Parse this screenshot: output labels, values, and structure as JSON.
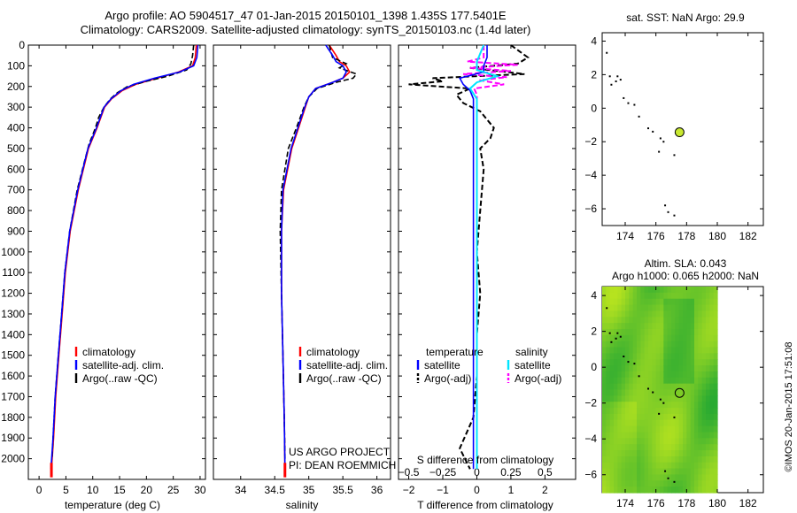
{
  "header": {
    "line1": "Argo profile: AO 5904517_47 01-Jan-2015 20150101_1398 1.435S 177.5401E",
    "line2": "Climatology: CARS2009. Satellite-adjusted climatology: synTS_20150103.nc (1.4d later)"
  },
  "credit": "©IMOS 20-Jan-2015 17:51:08",
  "colors": {
    "clim": "#ff0000",
    "sat": "#0000ff",
    "argo": "#000000",
    "sal_sat": "#00e5ff",
    "sal_argo": "#ff00ff",
    "marker": "#c8e830"
  },
  "chart_data": [
    {
      "id": "temperature",
      "type": "line",
      "xlabel": "temperature (deg C)",
      "ylabel": "",
      "xlim": [
        -2,
        31
      ],
      "ylim": [
        2100,
        0
      ],
      "xticks": [
        0,
        5,
        10,
        15,
        20,
        25,
        30
      ],
      "xticklabels": [
        "0",
        "5",
        "10",
        "15",
        "20",
        "25",
        "30"
      ],
      "yticks": [
        0,
        100,
        200,
        300,
        400,
        500,
        600,
        700,
        800,
        900,
        1000,
        1100,
        1200,
        1300,
        1400,
        1500,
        1600,
        1700,
        1800,
        1900,
        2000
      ],
      "yticklabels": [
        "0",
        "100",
        "200",
        "300",
        "400",
        "500",
        "600",
        "700",
        "800",
        "900",
        "1000",
        "1100",
        "1200",
        "1300",
        "1400",
        "1500",
        "1600",
        "1700",
        "1800",
        "1900",
        "2000"
      ],
      "legend": [
        "climatology",
        "satellite-adj. clim.",
        "Argo(..raw -QC)"
      ],
      "series": [
        {
          "name": "climatology",
          "depth": [
            0,
            60,
            100,
            130,
            160,
            190,
            220,
            260,
            300,
            400,
            500,
            700,
            900,
            1100,
            1300,
            1500,
            1700,
            1900,
            2050
          ],
          "values": [
            29.3,
            29.1,
            28.6,
            26,
            22,
            18,
            15.5,
            13.5,
            12.2,
            10.8,
            9.2,
            7.3,
            5.8,
            4.9,
            4.3,
            3.7,
            3.1,
            2.7,
            2.3
          ]
        },
        {
          "name": "satellite-adj. clim.",
          "depth": [
            0,
            60,
            100,
            130,
            160,
            190,
            220,
            260,
            300,
            400,
            500,
            700,
            900,
            1100,
            1300,
            1500,
            1700,
            1900,
            2050
          ],
          "values": [
            29.6,
            29.4,
            28.8,
            26.2,
            21.5,
            17.6,
            15.3,
            13.4,
            12.1,
            10.7,
            9.1,
            7.2,
            5.7,
            4.8,
            4.2,
            3.6,
            3.0,
            2.6,
            2.2
          ]
        },
        {
          "name": "Argo(..raw -QC)",
          "depth": [
            0,
            50,
            90,
            120,
            150,
            175,
            200,
            230,
            260,
            300,
            350,
            400,
            480,
            550,
            700,
            900,
            1100,
            1300,
            1500,
            1700,
            1900,
            2000
          ],
          "values": [
            28.8,
            28.6,
            28.3,
            27.5,
            24,
            20,
            16.5,
            14.6,
            13.3,
            12.1,
            11.1,
            10.5,
            9.3,
            8.6,
            7.1,
            5.7,
            4.8,
            4.2,
            3.6,
            3.0,
            2.6,
            2.4
          ]
        }
      ]
    },
    {
      "id": "salinity",
      "type": "line",
      "xlabel": "salinity",
      "xlim": [
        33.6,
        36.2
      ],
      "ylim": [
        2100,
        0
      ],
      "xticks": [
        34,
        34.5,
        35,
        35.5,
        36
      ],
      "xticklabels": [
        "34",
        "34.5",
        "35",
        "35.5",
        "36"
      ],
      "legend": [
        "climatology",
        "satellite-adj. clim.",
        "Argo(..raw -QC)"
      ],
      "annotation": [
        "US ARGO PROJECT",
        "PI: DEAN ROEMMICH"
      ],
      "series": [
        {
          "name": "climatology",
          "depth": [
            0,
            50,
            80,
            100,
            130,
            160,
            180,
            210,
            250,
            300,
            400,
            500,
            700,
            900,
            1200,
            1500,
            1800,
            2050
          ],
          "values": [
            35.3,
            35.4,
            35.45,
            35.55,
            35.6,
            35.5,
            35.35,
            35.1,
            35.0,
            34.95,
            34.85,
            34.75,
            34.63,
            34.6,
            34.6,
            34.62,
            34.64,
            34.65
          ]
        },
        {
          "name": "satellite-adj. clim.",
          "depth": [
            0,
            50,
            80,
            100,
            130,
            160,
            180,
            210,
            250,
            300,
            400,
            500,
            700,
            900,
            1200,
            1500,
            1800,
            2050
          ],
          "values": [
            35.25,
            35.35,
            35.4,
            35.5,
            35.55,
            35.5,
            35.35,
            35.1,
            35.0,
            34.94,
            34.84,
            34.74,
            34.62,
            34.6,
            34.6,
            34.62,
            34.64,
            34.65
          ]
        },
        {
          "name": "Argo(..raw -QC)",
          "depth": [
            0,
            60,
            90,
            110,
            140,
            160,
            180,
            210,
            250,
            300,
            400,
            500,
            700,
            900,
            1200,
            1500,
            1800,
            2000
          ],
          "values": [
            35.3,
            35.35,
            35.55,
            35.45,
            35.7,
            35.65,
            35.4,
            35.12,
            35.0,
            34.93,
            34.82,
            34.7,
            34.6,
            34.58,
            34.6,
            34.62,
            34.64,
            34.65
          ]
        }
      ]
    },
    {
      "id": "difference",
      "type": "line",
      "xlabel": "T difference from climatology",
      "toplabel": "S difference from climatology",
      "xlim": [
        -2.3,
        2.9
      ],
      "ylim": [
        2100,
        0
      ],
      "xticks": [
        -2,
        -1,
        0,
        1,
        2
      ],
      "xticklabels": [
        "−2",
        "−1",
        "0",
        "1",
        "2"
      ],
      "sticks": [
        -0.5,
        -0.25,
        0,
        0.25,
        0.5
      ],
      "sticklabels": [
        "−0.5",
        "−0.25",
        "0",
        "0.25",
        "0.5"
      ],
      "legend_temperature": {
        "title": "temperature",
        "items": [
          "satellite",
          "Argo(-adj)"
        ]
      },
      "legend_salinity": {
        "title": "salinity",
        "items": [
          "satellite",
          "Argo(-adj)"
        ]
      },
      "series": [
        {
          "name": "T satellite",
          "depth": [
            0,
            60,
            100,
            130,
            160,
            190,
            220,
            260,
            300,
            400,
            600,
            900,
            1200,
            1500,
            1800,
            2050
          ],
          "values": [
            0.3,
            0.3,
            0.2,
            0.2,
            -0.5,
            -0.4,
            -0.2,
            -0.1,
            -0.1,
            -0.1,
            -0.1,
            -0.1,
            -0.1,
            -0.1,
            -0.1,
            -0.1
          ]
        },
        {
          "name": "T Argo(-adj)",
          "depth": [
            0,
            60,
            90,
            110,
            140,
            160,
            175,
            190,
            210,
            240,
            280,
            320,
            360,
            400,
            450,
            500,
            600,
            800,
            1000,
            1200,
            1400,
            1600,
            1800,
            1950,
            2050
          ],
          "values": [
            1.0,
            1.5,
            1.2,
            -0.2,
            1.4,
            -1.3,
            -1.0,
            -2.0,
            -0.2,
            -0.6,
            -0.4,
            0.1,
            0.3,
            0.5,
            0.4,
            0.1,
            0.2,
            0.1,
            0.0,
            0.1,
            0.0,
            0.0,
            -0.1,
            -0.5,
            -0.2
          ]
        },
        {
          "name": "S satellite",
          "depth": [
            0,
            80,
            120,
            150,
            180,
            210,
            260,
            300,
            400,
            600,
            900,
            1200,
            1500,
            1800,
            2050
          ],
          "values": [
            0.05,
            0.0,
            0.0,
            0.15,
            0.0,
            -0.05,
            0.0,
            0.0,
            0.0,
            0.0,
            0.0,
            0.0,
            0.0,
            0.0,
            0.0
          ]
        },
        {
          "name": "S Argo(-adj)",
          "depth": [
            0,
            60,
            80,
            95,
            110,
            125,
            140,
            155,
            170,
            190,
            210,
            240,
            300,
            400,
            600,
            900,
            1200,
            1500,
            1800,
            2050
          ],
          "values": [
            0.05,
            0.05,
            -0.07,
            0.3,
            -0.05,
            0.25,
            -0.1,
            0.22,
            0.02,
            0.2,
            -0.02,
            0.0,
            0.0,
            0.0,
            0.0,
            0.0,
            0.0,
            0.0,
            0.0,
            0.0
          ]
        }
      ]
    },
    {
      "id": "sst-map",
      "type": "scatter",
      "title": "sat. SST: NaN Argo: 29.9",
      "xlim": [
        172.5,
        183
      ],
      "ylim": [
        -7,
        4.5
      ],
      "xticks": [
        174,
        176,
        178,
        180,
        182
      ],
      "xticklabels": [
        "174",
        "176",
        "178",
        "180",
        "182"
      ],
      "yticks": [
        4,
        2,
        0,
        -2,
        -4,
        -6
      ],
      "yticklabels": [
        "4",
        "2",
        "0",
        "−2",
        "−4",
        "−6"
      ],
      "argo_position": [
        177.54,
        -1.435
      ],
      "islands": [
        [
          172.8,
          3.3
        ],
        [
          173.0,
          1.9
        ],
        [
          173.1,
          1.4
        ],
        [
          173.4,
          1.6
        ],
        [
          173.5,
          1.9
        ],
        [
          173.7,
          1.7
        ],
        [
          173.9,
          0.6
        ],
        [
          174.2,
          0.3
        ],
        [
          174.6,
          0.2
        ],
        [
          174.9,
          -0.5
        ],
        [
          175.5,
          -1.2
        ],
        [
          175.8,
          -1.4
        ],
        [
          176.3,
          -1.8
        ],
        [
          176.5,
          -2.0
        ],
        [
          176.2,
          -2.6
        ],
        [
          177.2,
          -2.8
        ],
        [
          176.6,
          -5.8
        ],
        [
          176.8,
          -6.2
        ],
        [
          177.2,
          -6.4
        ]
      ]
    },
    {
      "id": "sla-map",
      "type": "heatmap",
      "title1": "Altim. SLA: 0.043",
      "title2": "Argo h1000: 0.065 h2000: NaN",
      "xlim": [
        172.5,
        183
      ],
      "ylim": [
        -7,
        4.5
      ],
      "xticks": [
        174,
        176,
        178,
        180,
        182
      ],
      "xticklabels": [
        "174",
        "176",
        "178",
        "180",
        "182"
      ],
      "yticks": [
        4,
        2,
        0,
        -2,
        -4,
        -6
      ],
      "yticklabels": [
        "4",
        "2",
        "0",
        "−2",
        "−4",
        "−6"
      ],
      "field_extent_lon": [
        172.5,
        180
      ],
      "argo_position": [
        177.54,
        -1.435
      ]
    }
  ]
}
